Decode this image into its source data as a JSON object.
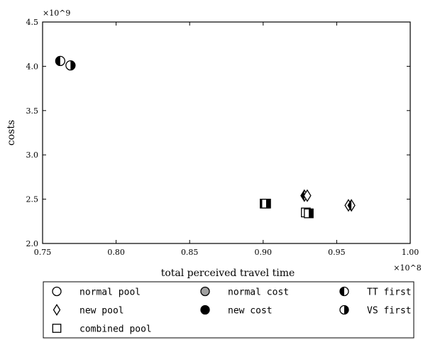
{
  "chart_data": {
    "type": "scatter",
    "xlabel": "total perceived travel time",
    "ylabel": "costs",
    "x_multiplier": "×10^8",
    "y_multiplier": "×10^9",
    "xlim": [
      0.75,
      1.0
    ],
    "ylim": [
      2.0,
      4.5
    ],
    "x_ticks": [
      "0.75",
      "0.80",
      "0.85",
      "0.90",
      "0.95",
      "1.00"
    ],
    "y_ticks": [
      "2.0",
      "2.5",
      "3.0",
      "3.5",
      "4.0",
      "4.5"
    ],
    "grid": false,
    "legend_position": "below",
    "legend": [
      {
        "label": "normal pool",
        "marker": "circle",
        "fill": "none"
      },
      {
        "label": "normal cost",
        "marker": "circle",
        "fill": "gray"
      },
      {
        "label": "TT first",
        "marker": "circle",
        "fill": "left-half"
      },
      {
        "label": "new pool",
        "marker": "diamond",
        "fill": "none"
      },
      {
        "label": "new cost",
        "marker": "circle",
        "fill": "full"
      },
      {
        "label": "VS first",
        "marker": "circle",
        "fill": "right-half"
      },
      {
        "label": "combined pool",
        "marker": "square",
        "fill": "none"
      }
    ],
    "points": [
      {
        "x": 0.762,
        "y": 4.06,
        "marker": "circle",
        "fill": "left-half"
      },
      {
        "x": 0.769,
        "y": 4.01,
        "marker": "circle",
        "fill": "right-half"
      },
      {
        "x": 0.901,
        "y": 2.45,
        "marker": "square",
        "fill": "left-half"
      },
      {
        "x": 0.902,
        "y": 2.45,
        "marker": "square",
        "fill": "right-half"
      },
      {
        "x": 0.928,
        "y": 2.54,
        "marker": "diamond",
        "fill": "left-half"
      },
      {
        "x": 0.93,
        "y": 2.54,
        "marker": "diamond",
        "fill": "none"
      },
      {
        "x": 0.929,
        "y": 2.35,
        "marker": "square",
        "fill": "none"
      },
      {
        "x": 0.931,
        "y": 2.34,
        "marker": "square",
        "fill": "right-half"
      },
      {
        "x": 0.958,
        "y": 2.43,
        "marker": "diamond",
        "fill": "none"
      },
      {
        "x": 0.96,
        "y": 2.43,
        "marker": "diamond",
        "fill": "left-half"
      }
    ]
  },
  "colors": {
    "ink": "#000000",
    "gray": "#a0a0a0",
    "white": "#ffffff"
  }
}
